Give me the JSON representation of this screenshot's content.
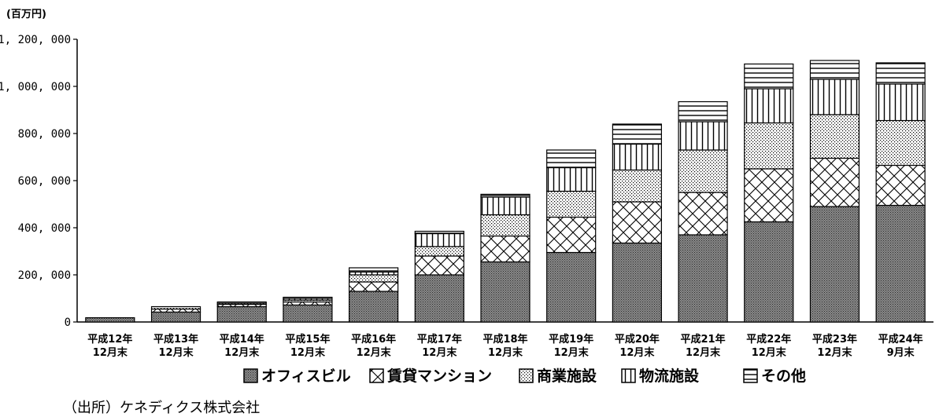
{
  "chart_data": {
    "type": "bar",
    "stacked": true,
    "unit_label": "(百万円)",
    "categories": [
      [
        "平成12年",
        "12月末"
      ],
      [
        "平成13年",
        "12月末"
      ],
      [
        "平成14年",
        "12月末"
      ],
      [
        "平成15年",
        "12月末"
      ],
      [
        "平成16年",
        "12月末"
      ],
      [
        "平成17年",
        "12月末"
      ],
      [
        "平成18年",
        "12月末"
      ],
      [
        "平成19年",
        "12月末"
      ],
      [
        "平成20年",
        "12月末"
      ],
      [
        "平成21年",
        "12月末"
      ],
      [
        "平成22年",
        "12月末"
      ],
      [
        "平成23年",
        "12月末"
      ],
      [
        "平成24年",
        "9月末"
      ]
    ],
    "series": [
      {
        "name": "オフィスビル",
        "pattern": "dots-dense",
        "values": [
          18000,
          42000,
          65000,
          72000,
          130000,
          200000,
          255000,
          295000,
          335000,
          370000,
          425000,
          490000,
          495000
        ]
      },
      {
        "name": "賃貸マンション",
        "pattern": "crosshatch",
        "values": [
          0,
          13000,
          10000,
          13000,
          40000,
          80000,
          110000,
          150000,
          175000,
          180000,
          225000,
          205000,
          170000
        ]
      },
      {
        "name": "商業施設",
        "pattern": "dots-sparse",
        "values": [
          0,
          10000,
          5000,
          8000,
          30000,
          40000,
          90000,
          110000,
          135000,
          180000,
          195000,
          185000,
          190000
        ]
      },
      {
        "name": "物流施設",
        "pattern": "vertical-lines",
        "values": [
          0,
          0,
          0,
          7000,
          12000,
          55000,
          75000,
          100000,
          110000,
          120000,
          145000,
          150000,
          155000
        ]
      },
      {
        "name": "その他",
        "pattern": "horizontal-lines",
        "values": [
          0,
          0,
          5000,
          5000,
          18000,
          10000,
          12000,
          75000,
          85000,
          85000,
          105000,
          80000,
          90000
        ]
      }
    ],
    "y_ticks": [
      "0",
      "200, 000",
      "400, 000",
      "600, 000",
      "800, 000",
      "1, 000, 000",
      "1, 200, 000"
    ],
    "ylim": [
      0,
      1200000
    ],
    "grid": false,
    "legend_position": "bottom"
  },
  "source": "（出所）ケネディクス株式会社",
  "colors": {
    "ink": "#000000",
    "fill": "#ffffff",
    "office": "#5a5a5a"
  }
}
